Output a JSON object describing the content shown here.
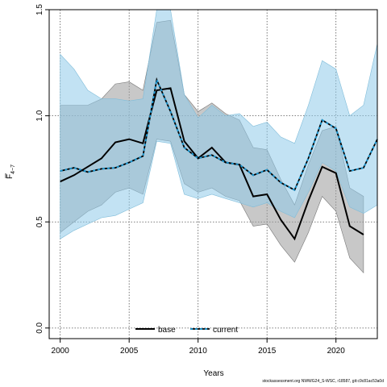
{
  "chart_data": {
    "type": "line",
    "xlabel": "Years",
    "ylabel": "F",
    "ylabel_subscript": "4−7",
    "xlim": [
      1999.2,
      2023.0
    ],
    "ylim": [
      -0.05,
      1.5
    ],
    "xticks": [
      2000,
      2005,
      2010,
      2015,
      2020
    ],
    "yticks": [
      0.0,
      0.5,
      1.0,
      1.5
    ],
    "ytick_labels": [
      "0.0",
      "0.5",
      "1.0",
      "1.5"
    ],
    "grid": true,
    "legend_position": "bottom-center",
    "series": [
      {
        "name": "base",
        "line_color": "#000000",
        "line_style": "solid",
        "band_color": "#9a9a9a",
        "x": [
          2000,
          2001,
          2002,
          2003,
          2004,
          2005,
          2006,
          2007,
          2008,
          2009,
          2010,
          2011,
          2012,
          2013,
          2014,
          2015,
          2016,
          2017,
          2018,
          2019,
          2020,
          2021,
          2022
        ],
        "values": [
          0.69,
          0.72,
          0.76,
          0.8,
          0.875,
          0.89,
          0.87,
          1.12,
          1.13,
          0.88,
          0.8,
          0.85,
          0.78,
          0.77,
          0.62,
          0.63,
          0.51,
          0.42,
          0.6,
          0.76,
          0.73,
          0.48,
          0.44
        ],
        "lower": [
          0.45,
          0.5,
          0.55,
          0.58,
          0.64,
          0.66,
          0.63,
          0.89,
          0.88,
          0.68,
          0.64,
          0.66,
          0.62,
          0.6,
          0.48,
          0.49,
          0.39,
          0.31,
          0.45,
          0.62,
          0.55,
          0.33,
          0.26
        ],
        "upper": [
          1.05,
          1.05,
          1.05,
          1.08,
          1.15,
          1.16,
          1.12,
          1.44,
          1.45,
          1.1,
          1.02,
          1.06,
          1.01,
          0.98,
          0.85,
          0.84,
          0.7,
          0.58,
          0.77,
          0.93,
          0.95,
          0.66,
          0.62
        ]
      },
      {
        "name": "current",
        "line_color": "#1a9ad6",
        "line_style": "dashed",
        "band_color": "#8fcbea",
        "x": [
          2000,
          2001,
          2002,
          2003,
          2004,
          2005,
          2006,
          2007,
          2008,
          2009,
          2010,
          2011,
          2012,
          2013,
          2014,
          2015,
          2016,
          2017,
          2018,
          2019,
          2020,
          2021,
          2022,
          2023
        ],
        "values": [
          0.74,
          0.755,
          0.735,
          0.75,
          0.755,
          0.78,
          0.81,
          1.17,
          1.02,
          0.85,
          0.8,
          0.815,
          0.78,
          0.77,
          0.72,
          0.745,
          0.685,
          0.65,
          0.8,
          0.98,
          0.94,
          0.74,
          0.755,
          0.89
        ],
        "lower": [
          0.42,
          0.46,
          0.49,
          0.52,
          0.53,
          0.56,
          0.59,
          0.88,
          0.87,
          0.63,
          0.61,
          0.63,
          0.61,
          0.59,
          0.57,
          0.59,
          0.55,
          0.52,
          0.64,
          0.78,
          0.74,
          0.57,
          0.54,
          0.58
        ],
        "upper": [
          1.29,
          1.22,
          1.12,
          1.08,
          1.08,
          1.07,
          1.08,
          1.5,
          1.5,
          1.1,
          0.99,
          1.05,
          1.0,
          1.01,
          0.95,
          0.97,
          0.9,
          0.87,
          1.05,
          1.26,
          1.22,
          1.0,
          1.05,
          1.34
        ]
      }
    ]
  },
  "footer": {
    "text": "stockassessment.org NWWG24_S-WSC, r18587, git:c9c81ac53a0d"
  }
}
